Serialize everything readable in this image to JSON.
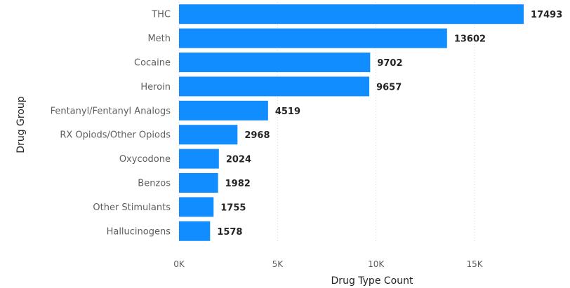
{
  "chart_data": {
    "type": "bar",
    "orientation": "horizontal",
    "categories": [
      "THC",
      "Meth",
      "Cocaine",
      "Heroin",
      "Fentanyl/Fentanyl Analogs",
      "RX Opiods/Other Opiods",
      "Oxycodone",
      "Benzos",
      "Other Stimulants",
      "Hallucinogens"
    ],
    "values": [
      17493,
      13602,
      9702,
      9657,
      4519,
      2968,
      2024,
      1982,
      1755,
      1578
    ],
    "data_labels": [
      "17493",
      "13602",
      "9702",
      "9657",
      "4519",
      "2968",
      "2024",
      "1982",
      "1755",
      "1578"
    ],
    "xlabel": "Drug Type Count",
    "ylabel": "Drug Group",
    "xlim": [
      0,
      19700
    ],
    "x_ticks": [
      0,
      5000,
      10000,
      15000
    ],
    "x_tick_labels": [
      "0K",
      "5K",
      "10K",
      "15K"
    ],
    "bar_color": "#118dff",
    "grid": "vertical dotted",
    "legend": "none"
  }
}
